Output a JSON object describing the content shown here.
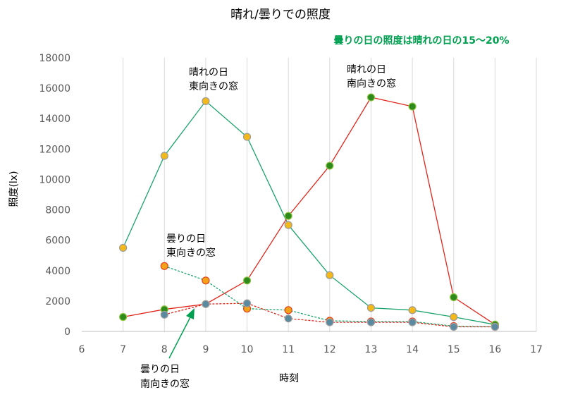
{
  "chart_data": {
    "type": "line",
    "title": "晴れ/曇りでの照度",
    "note": "曇りの日の照度は晴れの日の15～20%",
    "xlabel": "時刻",
    "ylabel": "照度(lx)",
    "xlim": [
      6,
      17
    ],
    "ylim": [
      0,
      18000
    ],
    "x_ticks": [
      6,
      7,
      8,
      9,
      10,
      11,
      12,
      13,
      14,
      15,
      16,
      17
    ],
    "y_ticks": [
      0,
      2000,
      4000,
      6000,
      8000,
      10000,
      12000,
      14000,
      16000,
      18000
    ],
    "grid": "vertical",
    "series": [
      {
        "key": "sunny_east",
        "line_color": "#1aa36a",
        "marker_fill": "#f3b81a",
        "marker_stroke": "#9b9b9b",
        "dashed": false,
        "x": [
          7,
          8,
          9,
          10,
          11,
          12,
          13,
          14,
          15,
          16
        ],
        "y": [
          5500,
          11550,
          15150,
          12800,
          7000,
          3700,
          1550,
          1400,
          950,
          450
        ]
      },
      {
        "key": "sunny_south",
        "line_color": "#e0251b",
        "marker_fill": "#2f8a1c",
        "marker_stroke": "#8cc63f",
        "dashed": false,
        "x": [
          7,
          8,
          9,
          10,
          11,
          12,
          13,
          14,
          15,
          16
        ],
        "y": [
          950,
          1450,
          1800,
          3350,
          7600,
          10900,
          15400,
          14800,
          2250,
          450
        ]
      },
      {
        "key": "cloudy_east",
        "line_color": "#1aa36a",
        "marker_fill": "#f3a21a",
        "marker_stroke": "#e0401b",
        "dashed": true,
        "x": [
          8,
          9,
          10,
          11,
          12,
          13,
          14,
          15,
          16
        ],
        "y": [
          4300,
          3350,
          1500,
          1400,
          700,
          650,
          650,
          350,
          300
        ]
      },
      {
        "key": "cloudy_south",
        "line_color": "#e0251b",
        "marker_fill": "#5a8aa0",
        "marker_stroke": "#a0a0a0",
        "dashed": true,
        "x": [
          8,
          9,
          10,
          11,
          12,
          13,
          14,
          15,
          16
        ],
        "y": [
          1100,
          1800,
          1850,
          850,
          600,
          600,
          600,
          300,
          300
        ]
      }
    ],
    "annotations": [
      {
        "key": "sunny_east",
        "lines": [
          "晴れの日",
          "東向きの窓"
        ]
      },
      {
        "key": "sunny_south",
        "lines": [
          "晴れの日",
          "南向きの窓"
        ]
      },
      {
        "key": "cloudy_east",
        "lines": [
          "曇りの日",
          "東向きの窓"
        ]
      },
      {
        "key": "cloudy_south",
        "lines": [
          "曇りの日",
          "南向きの窓"
        ]
      }
    ]
  }
}
